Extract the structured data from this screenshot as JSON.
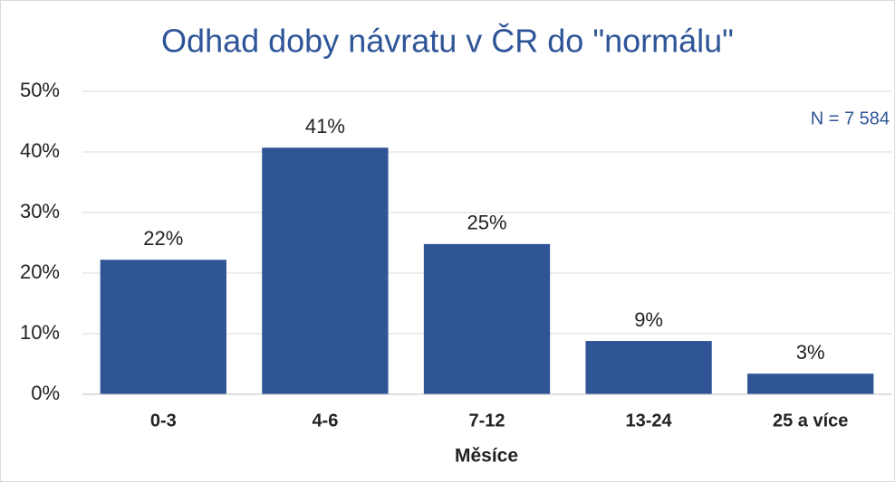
{
  "chart_data": {
    "type": "bar",
    "title": "Odhad doby návratu v ČR do \"normálu\"",
    "annotation": "N = 7 584",
    "x_label": "Měsíce",
    "categories": [
      "0-3",
      "4-6",
      "7-12",
      "13-24",
      "25 a více"
    ],
    "values": [
      22.2,
      40.7,
      24.8,
      8.8,
      3.4
    ],
    "value_labels": [
      "22%",
      "41%",
      "25%",
      "9%",
      "3%"
    ],
    "color": "#2f5597",
    "ylim": [
      0,
      50
    ],
    "yticks": [
      {
        "value": 0,
        "label": "0%"
      },
      {
        "value": 10,
        "label": "10%"
      },
      {
        "value": 20,
        "label": "20%"
      },
      {
        "value": 30,
        "label": "30%"
      },
      {
        "value": 40,
        "label": "40%"
      },
      {
        "value": 50,
        "label": "50%"
      }
    ],
    "grid": true
  }
}
